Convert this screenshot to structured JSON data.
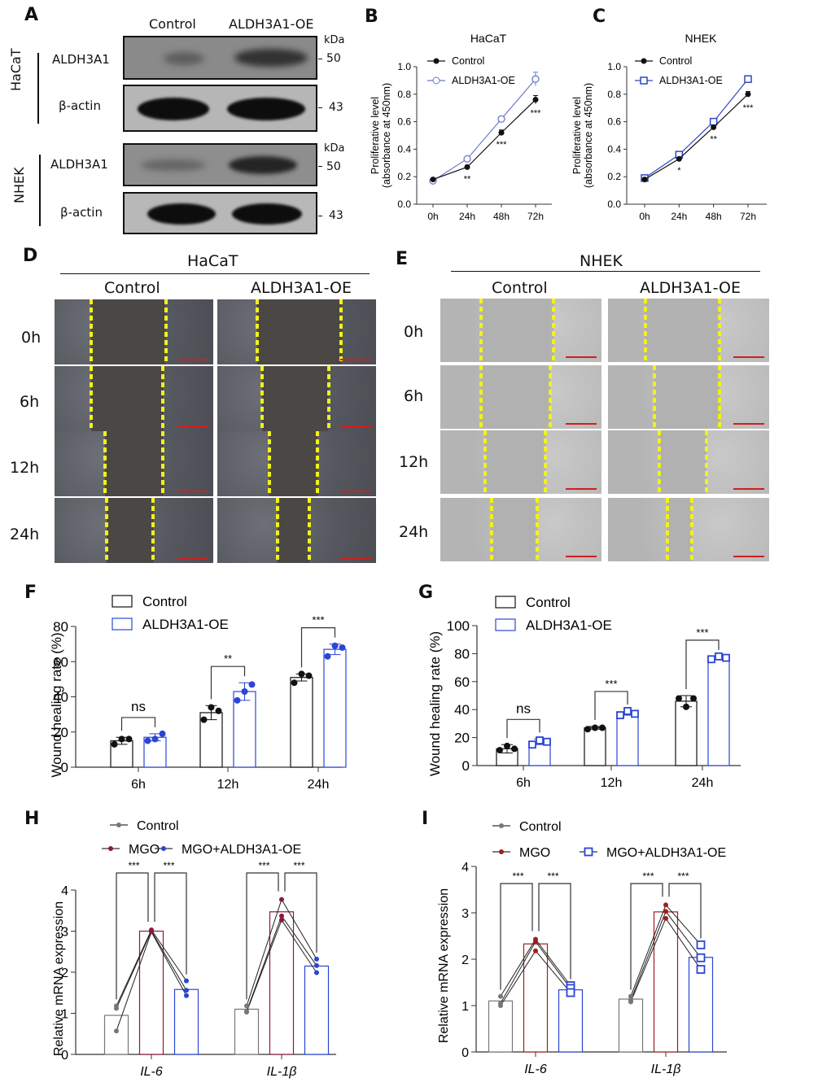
{
  "panel_labels": {
    "A": "A",
    "B": "B",
    "C": "C",
    "D": "D",
    "E": "E",
    "F": "F",
    "G": "G",
    "H": "H",
    "I": "I"
  },
  "panelA": {
    "col_labels": [
      "Control",
      "ALDH3A1-OE"
    ],
    "groups": [
      {
        "cell": "HaCaT",
        "rows": [
          {
            "protein": "ALDH3A1",
            "marker": "50",
            "unit": "kDa",
            "intensity": [
              0.3,
              0.7
            ]
          },
          {
            "protein": "β-actin",
            "marker": "43",
            "unit": "",
            "intensity": [
              1.0,
              1.0
            ]
          }
        ]
      },
      {
        "cell": "NHEK",
        "rows": [
          {
            "protein": "ALDH3A1",
            "marker": "50",
            "unit": "kDa",
            "intensity": [
              0.35,
              0.85
            ]
          },
          {
            "protein": "β-actin",
            "marker": "43",
            "unit": "",
            "intensity": [
              1.0,
              1.0
            ]
          }
        ]
      }
    ]
  },
  "panelD": {
    "title": "HaCaT",
    "col_labels": [
      "Control",
      "ALDH3A1-OE"
    ],
    "row_labels": [
      "0h",
      "6h",
      "12h",
      "24h"
    ],
    "wound_edges": [
      [
        [
          0.23,
          0.7
        ],
        [
          0.25,
          0.78
        ]
      ],
      [
        [
          0.23,
          0.68
        ],
        [
          0.28,
          0.7
        ]
      ],
      [
        [
          0.32,
          0.68
        ],
        [
          0.33,
          0.63
        ]
      ],
      [
        [
          0.33,
          0.62
        ],
        [
          0.38,
          0.58
        ]
      ]
    ]
  },
  "panelE": {
    "title": "NHEK",
    "col_labels": [
      "Control",
      "ALDH3A1-OE"
    ],
    "row_labels": [
      "0h",
      "6h",
      "12h",
      "24h"
    ],
    "wound_edges": [
      [
        [
          0.25,
          0.7
        ],
        [
          0.23,
          0.69
        ]
      ],
      [
        [
          0.25,
          0.68
        ],
        [
          0.29,
          0.69
        ]
      ],
      [
        [
          0.28,
          0.65
        ],
        [
          0.32,
          0.61
        ]
      ],
      [
        [
          0.32,
          0.6
        ],
        [
          0.37,
          0.52
        ]
      ]
    ]
  },
  "chart_data": [
    {
      "id": "B",
      "type": "line",
      "title": "HaCaT",
      "xlabel": "",
      "ylabel": "Proliferative level\n(absorbance at 450nm)",
      "ylabel_lines": [
        "Proliferative level",
        "(absorbance at 450nm)"
      ],
      "categories": [
        "0h",
        "24h",
        "48h",
        "72h"
      ],
      "yticks": [
        "0.0",
        "0.2",
        "0.4",
        "0.6",
        "0.8",
        "1.0"
      ],
      "ylim": [
        0,
        1.0
      ],
      "legend_position": "top-left",
      "series": [
        {
          "name": "Control",
          "marker": "filled-circle",
          "color": "#111111",
          "values": [
            0.18,
            0.27,
            0.52,
            0.76
          ],
          "errors": [
            0.01,
            0.01,
            0.02,
            0.03
          ]
        },
        {
          "name": "ALDH3A1-OE",
          "marker": "open-circle",
          "color": "#6a78c8",
          "values": [
            0.17,
            0.33,
            0.62,
            0.91
          ],
          "errors": [
            0.01,
            0.01,
            0.01,
            0.05
          ]
        }
      ],
      "annotations": [
        "",
        "**",
        "***",
        "***"
      ]
    },
    {
      "id": "C",
      "type": "line",
      "title": "NHEK",
      "xlabel": "",
      "ylabel": "Proliferative level\n(absorbance at 450nm)",
      "ylabel_lines": [
        "Proliferative level",
        "(absorbance at 450nm)"
      ],
      "categories": [
        "0h",
        "24h",
        "48h",
        "72h"
      ],
      "yticks": [
        "0.0",
        "0.2",
        "0.4",
        "0.6",
        "0.8",
        "1.0"
      ],
      "ylim": [
        0,
        1.0
      ],
      "legend_position": "top-left",
      "series": [
        {
          "name": "Control",
          "marker": "filled-circle",
          "color": "#111111",
          "values": [
            0.18,
            0.33,
            0.56,
            0.8
          ],
          "errors": [
            0.01,
            0.01,
            0.01,
            0.02
          ]
        },
        {
          "name": "ALDH3A1-OE",
          "marker": "open-square",
          "color": "#2f47c4",
          "values": [
            0.19,
            0.36,
            0.6,
            0.91
          ],
          "errors": [
            0.01,
            0.01,
            0.01,
            0.01
          ]
        }
      ],
      "annotations": [
        "",
        "*",
        "**",
        "***"
      ]
    },
    {
      "id": "F",
      "type": "bar",
      "title": "",
      "xlabel": "",
      "ylabel": "Wound healing rate (%)",
      "categories": [
        "6h",
        "12h",
        "24h"
      ],
      "yticks": [
        "0",
        "20",
        "40",
        "60",
        "80"
      ],
      "ylim": [
        0,
        80
      ],
      "legend_position": "top-left",
      "series": [
        {
          "name": "Control",
          "color": "#111111",
          "marker": "filled-circle",
          "values": [
            15,
            31,
            51
          ],
          "errors": [
            2,
            4,
            2
          ],
          "points": [
            [
              13,
              16,
              16
            ],
            [
              27,
              34,
              32
            ],
            [
              48,
              53,
              52
            ]
          ]
        },
        {
          "name": "ALDH3A1-OE",
          "color": "#2b45d6",
          "marker": "filled-circle",
          "values": [
            17,
            43,
            67
          ],
          "errors": [
            2,
            5,
            3
          ],
          "points": [
            [
              15,
              16,
              19
            ],
            [
              38,
              43,
              47
            ],
            [
              63,
              69,
              68
            ]
          ]
        }
      ],
      "comparisons": [
        "ns",
        "**",
        "***"
      ]
    },
    {
      "id": "G",
      "type": "bar",
      "title": "",
      "xlabel": "",
      "ylabel": "Wound healing rate (%)",
      "categories": [
        "6h",
        "12h",
        "24h"
      ],
      "yticks": [
        "0",
        "20",
        "40",
        "60",
        "80",
        "100"
      ],
      "ylim": [
        0,
        100
      ],
      "legend_position": "top-left",
      "series": [
        {
          "name": "Control",
          "color": "#111111",
          "marker": "filled-circle",
          "values": [
            12,
            27,
            46
          ],
          "errors": [
            3,
            1,
            4
          ],
          "points": [
            [
              11,
              14,
              12
            ],
            [
              26,
              27,
              27
            ],
            [
              48,
              42,
              48
            ]
          ]
        },
        {
          "name": "ALDH3A1-OE",
          "color": "#2b45d6",
          "marker": "open-square",
          "values": [
            17,
            37,
            77
          ],
          "errors": [
            2,
            1,
            1
          ],
          "points": [
            [
              15,
              18,
              17
            ],
            [
              36,
              39,
              37
            ],
            [
              76,
              78,
              77
            ]
          ]
        }
      ],
      "comparisons": [
        "ns",
        "***",
        "***"
      ]
    },
    {
      "id": "H",
      "type": "bar",
      "title": "",
      "xlabel": "",
      "ylabel": "Relative mRNA expression",
      "categories": [
        "IL-6",
        "IL-1β"
      ],
      "yticks": [
        "0",
        "1",
        "2",
        "3",
        "4"
      ],
      "ylim": [
        0,
        4
      ],
      "legend_position": "top-left",
      "series": [
        {
          "name": "Control",
          "color": "#777777",
          "marker": "small-circle",
          "values": [
            0.95,
            1.1
          ],
          "points": [
            [
              1.18,
              1.12,
              0.57
            ],
            [
              1.18,
              1.05,
              1.03
            ]
          ]
        },
        {
          "name": "MGO",
          "color": "#8b1a3a",
          "marker": "small-circle",
          "values": [
            3.0,
            3.47
          ],
          "points": [
            [
              3.03,
              3.0,
              2.98
            ],
            [
              3.77,
              3.37,
              3.27
            ]
          ]
        },
        {
          "name": "MGO+ALDH3A1-OE",
          "color": "#2b45d6",
          "marker": "small-circle",
          "values": [
            1.58,
            2.15
          ],
          "points": [
            [
              1.79,
              1.56,
              1.43
            ],
            [
              2.32,
              2.16,
              1.99
            ]
          ]
        }
      ],
      "comparisons": [
        [
          "***",
          "***"
        ],
        [
          "***",
          "***"
        ]
      ]
    },
    {
      "id": "I",
      "type": "bar",
      "title": "",
      "xlabel": "",
      "ylabel": "Relative mRNA expression",
      "categories": [
        "IL-6",
        "IL-1β"
      ],
      "yticks": [
        "0",
        "1",
        "2",
        "3",
        "4"
      ],
      "ylim": [
        0,
        4
      ],
      "legend_position": "top-left",
      "series": [
        {
          "name": "Control",
          "color": "#777777",
          "marker": "small-circle",
          "values": [
            1.1,
            1.14
          ],
          "points": [
            [
              1.2,
              1.05,
              1.0
            ],
            [
              1.2,
              1.12,
              1.08
            ]
          ]
        },
        {
          "name": "MGO",
          "color": "#a11d1d",
          "marker": "small-circle",
          "values": [
            2.33,
            3.02
          ],
          "points": [
            [
              2.43,
              2.38,
              2.18
            ],
            [
              3.17,
              3.03,
              2.88
            ]
          ]
        },
        {
          "name": "MGO+ALDH3A1-OE",
          "color": "#2b45d6",
          "marker": "open-square",
          "values": [
            1.34,
            2.04
          ],
          "points": [
            [
              1.43,
              1.37,
              1.28
            ],
            [
              2.31,
              2.03,
              1.78
            ]
          ]
        }
      ],
      "comparisons": [
        [
          "***",
          "***"
        ],
        [
          "***",
          "***"
        ]
      ]
    }
  ]
}
